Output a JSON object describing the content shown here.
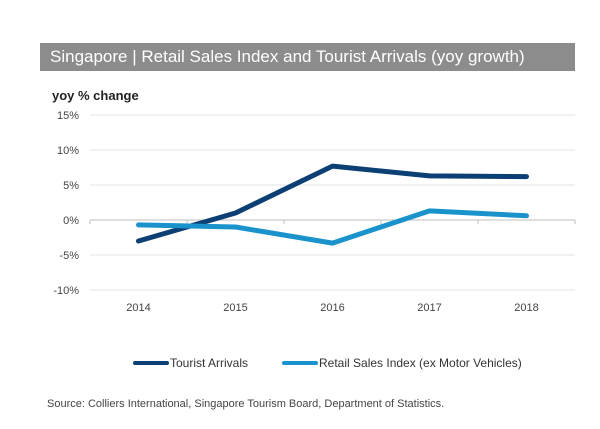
{
  "chart_data": {
    "type": "line",
    "title": "Singapore | Retail Sales Index and Tourist Arrivals (yoy growth)",
    "ylabel": "yoy % change",
    "xlabel": "",
    "categories": [
      "2014",
      "2015",
      "2016",
      "2017",
      "2018"
    ],
    "ylim": [
      -10,
      15
    ],
    "yticks": [
      15,
      10,
      5,
      0,
      -5,
      -10
    ],
    "ytick_labels": [
      "15%",
      "10%",
      "5%",
      "0%",
      "-5%",
      "-10%"
    ],
    "grid": true,
    "legend_position": "bottom",
    "series": [
      {
        "name": "Tourist Arrivals",
        "color": "#0c3f74",
        "values": [
          -3.0,
          1.0,
          7.7,
          6.3,
          6.2
        ]
      },
      {
        "name": "Retail Sales Index (ex Motor Vehicles)",
        "color": "#1a93cc",
        "values": [
          -0.7,
          -1.0,
          -3.3,
          1.3,
          0.6
        ]
      }
    ]
  },
  "source": "Source: Colliers International, Singapore Tourism Board, Department of Statistics."
}
